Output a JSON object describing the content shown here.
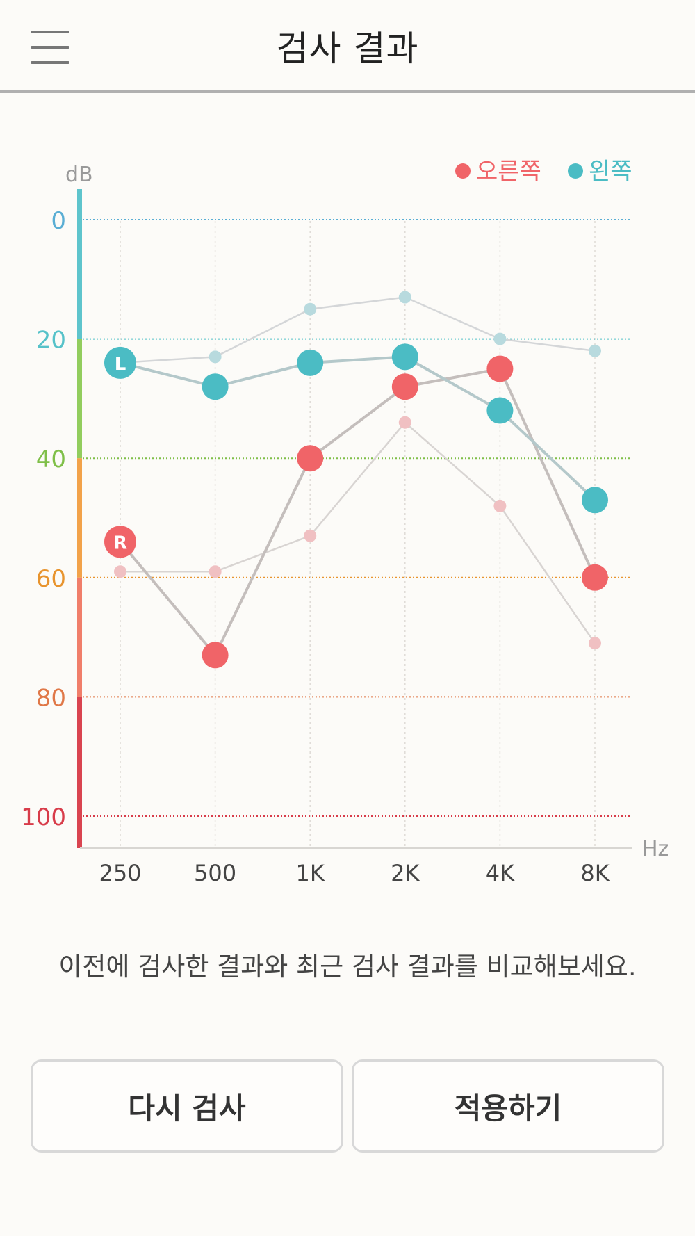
{
  "header": {
    "title": "검사 결과",
    "menu_icon": "hamburger-menu-icon"
  },
  "chart_data": {
    "type": "line",
    "ylabel": "dB",
    "xlabel": "Hz",
    "ylim": [
      0,
      105
    ],
    "y_inverted": true,
    "y_ticks": [
      0,
      20,
      40,
      60,
      80,
      100
    ],
    "y_tick_colors": [
      "#5aaed4",
      "#56c2c9",
      "#7fbf48",
      "#e8942e",
      "#e07848",
      "#d83c4a"
    ],
    "y_scale_bar_colors": [
      "#5ec4cc",
      "#92cd5e",
      "#f2a24a",
      "#f07e6a",
      "#d94450"
    ],
    "x": [
      "250",
      "500",
      "1K",
      "2K",
      "4K",
      "8K"
    ],
    "grid": true,
    "legend_position": "top-right",
    "legend": [
      {
        "label": "오른쪽",
        "color": "#f06468"
      },
      {
        "label": "왼쪽",
        "color": "#4bbcc4"
      }
    ],
    "series": [
      {
        "name": "오른쪽",
        "ear": "right",
        "test": "recent",
        "marker_label": "R",
        "color": "#f06468",
        "line_color": "#c4bebc",
        "values": [
          54,
          73,
          40,
          28,
          25,
          60
        ]
      },
      {
        "name": "왼쪽",
        "ear": "left",
        "test": "recent",
        "marker_label": "L",
        "color": "#4bbcc4",
        "line_color": "#b4c8ca",
        "values": [
          24,
          28,
          24,
          23,
          32,
          47
        ]
      },
      {
        "name": "오른쪽",
        "ear": "right",
        "test": "previous",
        "color": "#f0c0c2",
        "line_color": "#d8d4d2",
        "values": [
          59,
          59,
          53,
          34,
          48,
          71
        ]
      },
      {
        "name": "왼쪽",
        "ear": "left",
        "test": "previous",
        "color": "#b8dade",
        "line_color": "#d4d6d8",
        "values": [
          24,
          23,
          15,
          13,
          20,
          22
        ]
      }
    ]
  },
  "caption": "이전에 검사한 결과와 최근 검사 결과를 비교해보세요.",
  "buttons": {
    "retest": "다시 검사",
    "apply": "적용하기"
  }
}
